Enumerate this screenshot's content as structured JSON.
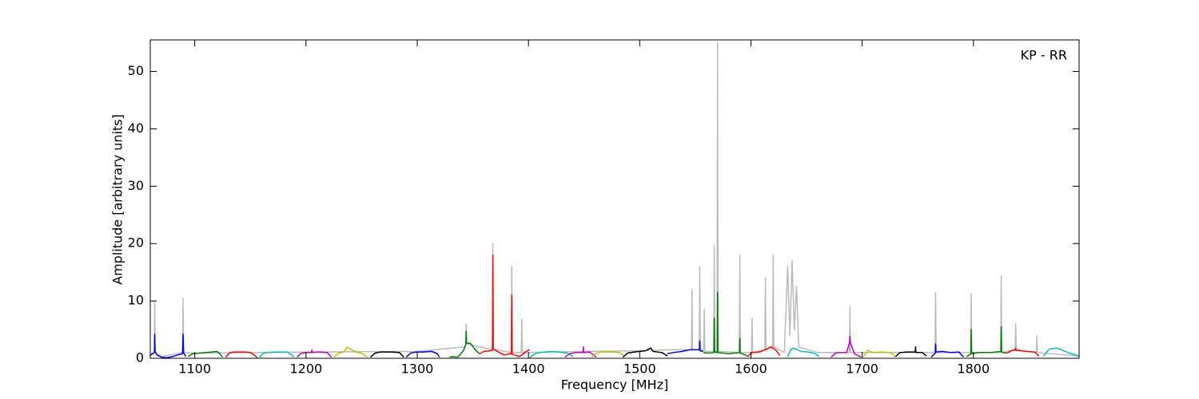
{
  "chart_data": {
    "type": "line",
    "xlabel": "Frequency [MHz]",
    "ylabel": "Amplitude [arbitrary units]",
    "annotation": "KP - RR",
    "xlim": [
      1060,
      1895
    ],
    "ylim": [
      0,
      55.5
    ],
    "xticks": [
      1100,
      1200,
      1300,
      1400,
      1500,
      1600,
      1700,
      1800
    ],
    "yticks": [
      0,
      10,
      20,
      30,
      40,
      50
    ],
    "series": [
      {
        "color": "#bbbbbb",
        "x": [
          1060,
          1063.6,
          1064,
          1064.4,
          1070,
          1089,
          1089.5,
          1090,
          1100,
          1200,
          1300,
          1343.5,
          1344,
          1344.5,
          1367.5,
          1368,
          1368.5,
          1384.5,
          1385,
          1385.5,
          1393.5,
          1394,
          1394.5,
          1450,
          1500,
          1530,
          1546.5,
          1547,
          1547.5,
          1553.5,
          1554,
          1554.5,
          1557.5,
          1558,
          1558.5,
          1566.5,
          1567,
          1567.5,
          1569.5,
          1570,
          1570.5,
          1589.5,
          1590,
          1590.5,
          1600.5,
          1601,
          1601.5,
          1612.5,
          1613,
          1613.5,
          1619.5,
          1620,
          1620.5,
          1630,
          1633,
          1635,
          1637,
          1639,
          1641,
          1643,
          1660,
          1688.5,
          1689,
          1689.5,
          1720,
          1765.5,
          1766,
          1766.5,
          1797.5,
          1798,
          1798.5,
          1824.5,
          1825,
          1825.5,
          1837.5,
          1838,
          1838.5,
          1856.5,
          1857,
          1857.5,
          1895
        ],
        "values": [
          0.8,
          1,
          10,
          1,
          0.3,
          1,
          10.5,
          1,
          0.9,
          1.1,
          1.2,
          2,
          6,
          2.5,
          1.5,
          20,
          1.6,
          1,
          16,
          1,
          1,
          6.8,
          1,
          1.2,
          1.3,
          1.5,
          1.5,
          12,
          1.5,
          1.5,
          16,
          1.5,
          1.3,
          8.5,
          1.2,
          1.2,
          19.7,
          1.2,
          1.2,
          55,
          1.2,
          1,
          18,
          1,
          1,
          7,
          1,
          1.5,
          14,
          1.5,
          2,
          18,
          2,
          1,
          16,
          4,
          17,
          5,
          12.5,
          2,
          1,
          1,
          9,
          1,
          1,
          1,
          11.5,
          1,
          1,
          11.3,
          1,
          1,
          14.3,
          1,
          1.5,
          6,
          1.5,
          1,
          4,
          1,
          0.4
        ]
      },
      {
        "color": "#0000ff",
        "x": [
          1060,
          1062,
          1063.7,
          1064,
          1064.3,
          1066,
          1070,
          1075,
          1080,
          1085,
          1089,
          1089.5,
          1090,
          1092
        ],
        "values": [
          0.5,
          0.8,
          1.0,
          4.2,
          1.2,
          0.6,
          0.2,
          0.1,
          0.3,
          0.6,
          0.8,
          4.2,
          0.9,
          0.3
        ]
      },
      {
        "color": "#008000",
        "x": [
          1094,
          1098,
          1104,
          1115,
          1120,
          1123,
          1125
        ],
        "values": [
          0.3,
          0.8,
          0.9,
          1.1,
          1.2,
          0.7,
          0.2
        ]
      },
      {
        "color": "#ff0000",
        "x": [
          1128,
          1131,
          1135,
          1145,
          1150,
          1154,
          1156
        ],
        "values": [
          0.2,
          0.9,
          1.1,
          1.1,
          1.0,
          0.5,
          0.1
        ]
      },
      {
        "color": "#00bfbf",
        "x": [
          1158,
          1161,
          1165,
          1175,
          1183,
          1187,
          1189
        ],
        "values": [
          0.2,
          0.8,
          1.0,
          1.1,
          1.1,
          0.6,
          0.2
        ]
      },
      {
        "color": "#bf00bf",
        "x": [
          1192,
          1195,
          1199,
          1205,
          1205.3,
          1205.6,
          1212,
          1219,
          1223
        ],
        "values": [
          0.2,
          0.8,
          1.0,
          1.0,
          1.5,
          1.0,
          1.1,
          1.0,
          0.2
        ]
      },
      {
        "color": "#bfbf00",
        "x": [
          1225,
          1229,
          1234,
          1237,
          1245,
          1251,
          1255
        ],
        "values": [
          0.2,
          0.9,
          1.1,
          1.9,
          1.1,
          0.8,
          0.2
        ]
      },
      {
        "color": "#000000",
        "x": [
          1258,
          1262,
          1267,
          1277,
          1284,
          1288
        ],
        "values": [
          0.2,
          0.9,
          1.1,
          1.1,
          1.0,
          0.2
        ]
      },
      {
        "color": "#0000ff",
        "x": [
          1290,
          1294,
          1299,
          1305,
          1313,
          1318,
          1320
        ],
        "values": [
          0.2,
          0.9,
          1.1,
          1.1,
          1.2,
          0.8,
          0.2
        ]
      },
      {
        "color": "#008000",
        "x": [
          1329,
          1332,
          1336,
          1338,
          1342,
          1343.7,
          1344,
          1344.3,
          1348,
          1352,
          1356
        ],
        "values": [
          0.2,
          0.3,
          0.2,
          0.5,
          1.5,
          2.5,
          4.7,
          2.6,
          2.6,
          1.5,
          0.8
        ]
      },
      {
        "color": "#ff0000",
        "x": [
          1356,
          1360,
          1366,
          1367.7,
          1368,
          1368.3,
          1372,
          1378,
          1384.7,
          1385,
          1385.3,
          1392,
          1398,
          1401
        ],
        "values": [
          0.8,
          1.2,
          1.3,
          1.5,
          18,
          1.6,
          1.2,
          0.6,
          0.8,
          11,
          0.7,
          0.3,
          1.2,
          1.5
        ]
      },
      {
        "color": "#00bfbf",
        "x": [
          1401,
          1405,
          1410,
          1420,
          1428,
          1435,
          1440
        ],
        "values": [
          0.1,
          0.7,
          1.0,
          1.2,
          1.1,
          0.9,
          0.3
        ]
      },
      {
        "color": "#bf00bf",
        "x": [
          1433,
          1437,
          1442,
          1449,
          1449.3,
          1449.6,
          1455,
          1461
        ],
        "values": [
          0.2,
          0.8,
          1.0,
          1.0,
          2.0,
          1.0,
          1.1,
          0.2
        ]
      },
      {
        "color": "#bfbf00",
        "x": [
          1457,
          1460,
          1465,
          1475,
          1482,
          1486
        ],
        "values": [
          0.2,
          0.8,
          1.1,
          1.1,
          1.0,
          0.3
        ]
      },
      {
        "color": "#000000",
        "x": [
          1485,
          1489,
          1495,
          1505,
          1510,
          1512,
          1520,
          1525
        ],
        "values": [
          0.2,
          0.9,
          1.1,
          1.3,
          1.8,
          1.2,
          1.0,
          0.4
        ]
      },
      {
        "color": "#0000ff",
        "x": [
          1525,
          1530,
          1538,
          1545,
          1553.7,
          1554,
          1554.3,
          1557
        ],
        "values": [
          0.8,
          1.0,
          1.2,
          1.5,
          1.5,
          3.0,
          1.3,
          1.2
        ]
      },
      {
        "color": "#008000",
        "x": [
          1557,
          1562,
          1566.7,
          1567,
          1567.3,
          1569.7,
          1570,
          1570.3,
          1580,
          1589.7,
          1590,
          1590.3,
          1595,
          1597
        ],
        "values": [
          1.0,
          0.9,
          1.0,
          7.0,
          1.1,
          1.0,
          11.5,
          1.0,
          0.8,
          1.0,
          3.5,
          0.9,
          0.6,
          0.3
        ]
      },
      {
        "color": "#ff0000",
        "x": [
          1597,
          1601,
          1608,
          1613,
          1618,
          1622,
          1626
        ],
        "values": [
          0.3,
          1.0,
          1.1,
          1.5,
          2.0,
          1.5,
          0.5
        ]
      },
      {
        "color": "#00bfbf",
        "x": [
          1633,
          1636,
          1638,
          1645,
          1652,
          1658,
          1661
        ],
        "values": [
          0.3,
          1.5,
          1.8,
          1.2,
          1.1,
          0.8,
          0.3
        ]
      },
      {
        "color": "#bf00bf",
        "x": [
          1672,
          1676,
          1680,
          1686,
          1688.7,
          1689,
          1689.3,
          1693,
          1699
        ],
        "values": [
          0.2,
          0.9,
          1.0,
          1.0,
          2.8,
          3.8,
          2.8,
          0.8,
          0.2
        ]
      },
      {
        "color": "#bfbf00",
        "x": [
          1701,
          1705,
          1710,
          1718,
          1725,
          1730
        ],
        "values": [
          0.3,
          1.4,
          1.0,
          1.1,
          1.0,
          0.3
        ]
      },
      {
        "color": "#000000",
        "x": [
          1730,
          1734,
          1740,
          1747.7,
          1748,
          1748.3,
          1754,
          1758
        ],
        "values": [
          0.3,
          1.0,
          1.1,
          1.1,
          2.0,
          1.0,
          1.0,
          0.4
        ]
      },
      {
        "color": "#0000ff",
        "x": [
          1762,
          1765.7,
          1766,
          1766.3,
          1772,
          1780,
          1787,
          1791
        ],
        "values": [
          0.2,
          0.9,
          2.5,
          1.1,
          1.2,
          1.0,
          1.1,
          0.2
        ]
      },
      {
        "color": "#008000",
        "x": [
          1794,
          1797.7,
          1798,
          1798.3,
          1805,
          1815,
          1824.7,
          1825,
          1825.3,
          1830
        ],
        "values": [
          0.3,
          0.8,
          5.0,
          0.8,
          1.0,
          1.0,
          1.2,
          5.5,
          1.1,
          0.9
        ]
      },
      {
        "color": "#ff0000",
        "x": [
          1830,
          1834,
          1837.7,
          1838,
          1838.3,
          1848,
          1855,
          1859
        ],
        "values": [
          0.9,
          1.3,
          1.5,
          1.8,
          1.4,
          1.2,
          1.1,
          0.4
        ]
      },
      {
        "color": "#00bfbf",
        "x": [
          1863,
          1868,
          1875,
          1885,
          1895
        ],
        "values": [
          0.4,
          1.6,
          1.8,
          1.0,
          0.4
        ]
      }
    ]
  }
}
